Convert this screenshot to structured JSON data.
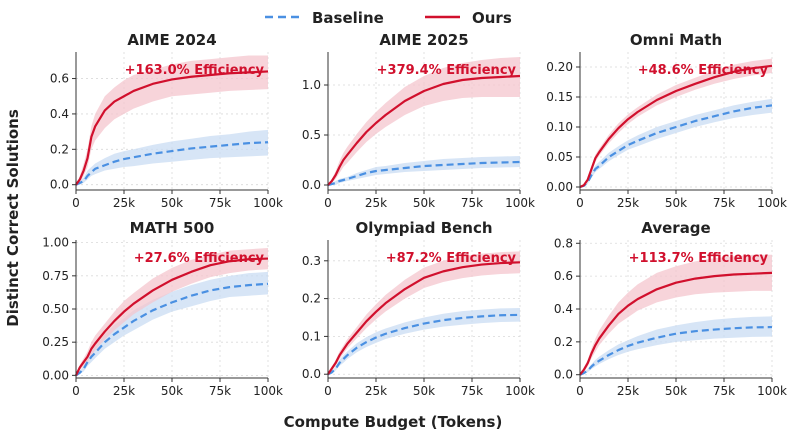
{
  "legend": {
    "baseline_label": "Baseline",
    "ours_label": "Ours"
  },
  "colors": {
    "baseline": "#4a90e2",
    "ours": "#d1102d",
    "baseline_band": "#c9dcf3",
    "ours_band": "#f4c5cd",
    "grid": "#d9d9d9"
  },
  "xlabel": "Compute Budget (Tokens)",
  "ylabel": "Distinct Correct Solutions",
  "chart_data": [
    {
      "type": "line",
      "title": "AIME 2024",
      "efficiency_label": "+163.0% Efficiency",
      "xlim": [
        0,
        100000
      ],
      "ylim": [
        -0.03,
        0.75
      ],
      "x_ticks": [
        "0",
        "25k",
        "50k",
        "75k",
        "100k"
      ],
      "y_ticks": [
        "0.0",
        "0.2",
        "0.4",
        "0.6"
      ],
      "y_tick_values": [
        0,
        0.2,
        0.4,
        0.6
      ],
      "x": [
        0,
        2000,
        4000,
        6000,
        8000,
        10000,
        15000,
        20000,
        25000,
        30000,
        40000,
        50000,
        60000,
        70000,
        80000,
        90000,
        100000
      ],
      "series": [
        {
          "name": "Baseline",
          "values": [
            0.0,
            0.01,
            0.02,
            0.05,
            0.07,
            0.09,
            0.11,
            0.13,
            0.145,
            0.155,
            0.175,
            0.19,
            0.205,
            0.215,
            0.225,
            0.235,
            0.24
          ],
          "lower": [
            0.0,
            0.0,
            0.01,
            0.03,
            0.05,
            0.06,
            0.08,
            0.09,
            0.1,
            0.105,
            0.12,
            0.13,
            0.14,
            0.15,
            0.155,
            0.16,
            0.165
          ],
          "upper": [
            0.0,
            0.02,
            0.04,
            0.08,
            0.1,
            0.12,
            0.15,
            0.175,
            0.19,
            0.2,
            0.225,
            0.245,
            0.26,
            0.275,
            0.285,
            0.3,
            0.31
          ]
        },
        {
          "name": "Ours",
          "values": [
            0.0,
            0.03,
            0.08,
            0.15,
            0.27,
            0.33,
            0.42,
            0.47,
            0.5,
            0.53,
            0.57,
            0.595,
            0.61,
            0.62,
            0.63,
            0.635,
            0.64
          ],
          "lower": [
            0.0,
            0.01,
            0.05,
            0.1,
            0.2,
            0.25,
            0.32,
            0.37,
            0.4,
            0.43,
            0.47,
            0.5,
            0.51,
            0.52,
            0.53,
            0.535,
            0.54
          ],
          "upper": [
            0.0,
            0.05,
            0.12,
            0.2,
            0.33,
            0.4,
            0.5,
            0.55,
            0.59,
            0.62,
            0.65,
            0.68,
            0.7,
            0.71,
            0.72,
            0.73,
            0.73
          ]
        }
      ]
    },
    {
      "type": "line",
      "title": "AIME 2025",
      "efficiency_label": "+379.4% Efficiency",
      "xlim": [
        0,
        100000
      ],
      "ylim": [
        -0.05,
        1.33
      ],
      "x_ticks": [
        "0",
        "25k",
        "50k",
        "75k",
        "100k"
      ],
      "y_ticks": [
        "0.0",
        "0.5",
        "1.0"
      ],
      "y_tick_values": [
        0,
        0.5,
        1.0
      ],
      "x": [
        0,
        2000,
        4000,
        6000,
        8000,
        10000,
        15000,
        20000,
        25000,
        30000,
        40000,
        50000,
        60000,
        70000,
        80000,
        90000,
        100000
      ],
      "series": [
        {
          "name": "Baseline",
          "values": [
            0.0,
            0.01,
            0.02,
            0.04,
            0.05,
            0.06,
            0.09,
            0.12,
            0.14,
            0.15,
            0.17,
            0.19,
            0.2,
            0.21,
            0.22,
            0.225,
            0.23
          ],
          "lower": [
            0.0,
            0.0,
            0.0,
            0.02,
            0.03,
            0.04,
            0.06,
            0.08,
            0.1,
            0.11,
            0.13,
            0.14,
            0.15,
            0.16,
            0.17,
            0.175,
            0.18
          ],
          "upper": [
            0.0,
            0.02,
            0.04,
            0.06,
            0.07,
            0.08,
            0.12,
            0.15,
            0.18,
            0.19,
            0.22,
            0.24,
            0.26,
            0.27,
            0.28,
            0.285,
            0.29
          ]
        },
        {
          "name": "Ours",
          "values": [
            0.0,
            0.04,
            0.1,
            0.18,
            0.25,
            0.3,
            0.42,
            0.53,
            0.62,
            0.7,
            0.84,
            0.94,
            1.01,
            1.05,
            1.07,
            1.08,
            1.09
          ],
          "lower": [
            0.0,
            0.02,
            0.06,
            0.12,
            0.18,
            0.22,
            0.33,
            0.43,
            0.51,
            0.58,
            0.7,
            0.79,
            0.84,
            0.87,
            0.88,
            0.88,
            0.88
          ],
          "upper": [
            0.0,
            0.06,
            0.14,
            0.24,
            0.32,
            0.38,
            0.51,
            0.63,
            0.73,
            0.82,
            0.98,
            1.09,
            1.17,
            1.22,
            1.25,
            1.27,
            1.28
          ]
        }
      ]
    },
    {
      "type": "line",
      "title": "Omni Math",
      "efficiency_label": "+48.6% Efficiency",
      "xlim": [
        0,
        100000
      ],
      "ylim": [
        -0.005,
        0.225
      ],
      "x_ticks": [
        "0",
        "25k",
        "50k",
        "75k",
        "100k"
      ],
      "y_ticks": [
        "0.00",
        "0.05",
        "0.10",
        "0.15",
        "0.20"
      ],
      "y_tick_values": [
        0,
        0.05,
        0.1,
        0.15,
        0.2
      ],
      "x": [
        0,
        2000,
        4000,
        6000,
        8000,
        10000,
        15000,
        20000,
        25000,
        30000,
        40000,
        50000,
        60000,
        70000,
        80000,
        90000,
        100000
      ],
      "series": [
        {
          "name": "Baseline",
          "values": [
            0.0,
            0.002,
            0.008,
            0.02,
            0.03,
            0.035,
            0.05,
            0.06,
            0.07,
            0.077,
            0.09,
            0.1,
            0.11,
            0.118,
            0.126,
            0.132,
            0.136
          ],
          "lower": [
            0.0,
            0.0,
            0.005,
            0.015,
            0.025,
            0.03,
            0.043,
            0.053,
            0.062,
            0.068,
            0.08,
            0.09,
            0.1,
            0.108,
            0.115,
            0.12,
            0.124
          ],
          "upper": [
            0.0,
            0.004,
            0.012,
            0.025,
            0.036,
            0.042,
            0.057,
            0.068,
            0.078,
            0.086,
            0.1,
            0.11,
            0.12,
            0.128,
            0.136,
            0.142,
            0.147
          ]
        },
        {
          "name": "Ours",
          "values": [
            0.0,
            0.003,
            0.012,
            0.03,
            0.048,
            0.058,
            0.08,
            0.098,
            0.113,
            0.125,
            0.145,
            0.16,
            0.172,
            0.183,
            0.192,
            0.198,
            0.202
          ],
          "lower": [
            0.0,
            0.001,
            0.009,
            0.025,
            0.042,
            0.052,
            0.073,
            0.09,
            0.105,
            0.117,
            0.136,
            0.15,
            0.162,
            0.172,
            0.18,
            0.186,
            0.19
          ],
          "upper": [
            0.0,
            0.005,
            0.015,
            0.035,
            0.054,
            0.064,
            0.087,
            0.106,
            0.121,
            0.133,
            0.154,
            0.17,
            0.182,
            0.194,
            0.204,
            0.21,
            0.214
          ]
        }
      ]
    },
    {
      "type": "line",
      "title": "MATH 500",
      "efficiency_label": "+27.6% Efficiency",
      "xlim": [
        0,
        100000
      ],
      "ylim": [
        -0.02,
        1.02
      ],
      "x_ticks": [
        "0",
        "25k",
        "50k",
        "75k",
        "100k"
      ],
      "y_ticks": [
        "0.00",
        "0.25",
        "0.50",
        "0.75",
        "1.00"
      ],
      "y_tick_values": [
        0,
        0.25,
        0.5,
        0.75,
        1.0
      ],
      "x": [
        0,
        2000,
        4000,
        6000,
        8000,
        10000,
        15000,
        20000,
        25000,
        30000,
        40000,
        50000,
        60000,
        70000,
        80000,
        90000,
        100000
      ],
      "series": [
        {
          "name": "Baseline",
          "values": [
            0.0,
            0.02,
            0.05,
            0.1,
            0.14,
            0.17,
            0.25,
            0.31,
            0.36,
            0.41,
            0.49,
            0.55,
            0.6,
            0.64,
            0.665,
            0.68,
            0.69
          ],
          "lower": [
            0.0,
            0.01,
            0.03,
            0.07,
            0.1,
            0.13,
            0.2,
            0.25,
            0.3,
            0.34,
            0.42,
            0.48,
            0.52,
            0.56,
            0.59,
            0.6,
            0.61
          ],
          "upper": [
            0.0,
            0.03,
            0.07,
            0.13,
            0.18,
            0.22,
            0.31,
            0.38,
            0.43,
            0.49,
            0.57,
            0.63,
            0.68,
            0.72,
            0.75,
            0.77,
            0.78
          ]
        },
        {
          "name": "Ours",
          "values": [
            0.0,
            0.06,
            0.1,
            0.14,
            0.2,
            0.24,
            0.33,
            0.41,
            0.48,
            0.54,
            0.64,
            0.72,
            0.78,
            0.83,
            0.86,
            0.875,
            0.88
          ],
          "lower": [
            0.0,
            0.04,
            0.07,
            0.1,
            0.15,
            0.19,
            0.27,
            0.34,
            0.4,
            0.46,
            0.55,
            0.63,
            0.69,
            0.74,
            0.77,
            0.79,
            0.8
          ],
          "upper": [
            0.0,
            0.08,
            0.13,
            0.18,
            0.25,
            0.3,
            0.39,
            0.48,
            0.56,
            0.62,
            0.73,
            0.81,
            0.87,
            0.91,
            0.94,
            0.95,
            0.96
          ]
        }
      ]
    },
    {
      "type": "line",
      "title": "Olympiad Bench",
      "efficiency_label": "+87.2% Efficiency",
      "xlim": [
        0,
        100000
      ],
      "ylim": [
        -0.01,
        0.355
      ],
      "x_ticks": [
        "0",
        "25k",
        "50k",
        "75k",
        "100k"
      ],
      "y_ticks": [
        "0.0",
        "0.1",
        "0.2",
        "0.3"
      ],
      "y_tick_values": [
        0,
        0.1,
        0.2,
        0.3
      ],
      "x": [
        0,
        2000,
        4000,
        6000,
        8000,
        10000,
        15000,
        20000,
        25000,
        30000,
        40000,
        50000,
        60000,
        70000,
        80000,
        90000,
        100000
      ],
      "series": [
        {
          "name": "Baseline",
          "values": [
            0.0,
            0.005,
            0.015,
            0.03,
            0.04,
            0.05,
            0.07,
            0.085,
            0.097,
            0.107,
            0.122,
            0.134,
            0.143,
            0.149,
            0.153,
            0.156,
            0.157
          ],
          "lower": [
            0.0,
            0.002,
            0.01,
            0.022,
            0.03,
            0.04,
            0.058,
            0.072,
            0.083,
            0.093,
            0.107,
            0.118,
            0.126,
            0.131,
            0.135,
            0.138,
            0.139
          ],
          "upper": [
            0.0,
            0.008,
            0.02,
            0.038,
            0.05,
            0.06,
            0.082,
            0.098,
            0.111,
            0.121,
            0.137,
            0.15,
            0.16,
            0.167,
            0.171,
            0.174,
            0.175
          ]
        },
        {
          "name": "Ours",
          "values": [
            0.0,
            0.015,
            0.03,
            0.05,
            0.065,
            0.08,
            0.11,
            0.14,
            0.165,
            0.188,
            0.225,
            0.255,
            0.272,
            0.283,
            0.29,
            0.294,
            0.296
          ],
          "lower": [
            0.0,
            0.01,
            0.022,
            0.04,
            0.054,
            0.068,
            0.095,
            0.122,
            0.145,
            0.166,
            0.2,
            0.228,
            0.244,
            0.254,
            0.261,
            0.265,
            0.267
          ],
          "upper": [
            0.0,
            0.02,
            0.038,
            0.06,
            0.076,
            0.092,
            0.125,
            0.158,
            0.185,
            0.21,
            0.25,
            0.282,
            0.3,
            0.312,
            0.319,
            0.323,
            0.325
          ]
        }
      ]
    },
    {
      "type": "line",
      "title": "Average",
      "efficiency_label": "+113.7% Efficiency",
      "xlim": [
        0,
        100000
      ],
      "ylim": [
        -0.02,
        0.82
      ],
      "x_ticks": [
        "0",
        "25k",
        "50k",
        "75k",
        "100k"
      ],
      "y_ticks": [
        "0.0",
        "0.2",
        "0.4",
        "0.6",
        "0.8"
      ],
      "y_tick_values": [
        0,
        0.2,
        0.4,
        0.6,
        0.8
      ],
      "x": [
        0,
        2000,
        4000,
        6000,
        8000,
        10000,
        15000,
        20000,
        25000,
        30000,
        40000,
        50000,
        60000,
        70000,
        80000,
        90000,
        100000
      ],
      "series": [
        {
          "name": "Baseline",
          "values": [
            0.0,
            0.01,
            0.025,
            0.05,
            0.07,
            0.085,
            0.12,
            0.15,
            0.175,
            0.195,
            0.225,
            0.25,
            0.265,
            0.275,
            0.283,
            0.288,
            0.29
          ],
          "lower": [
            0.0,
            0.005,
            0.015,
            0.035,
            0.05,
            0.065,
            0.095,
            0.12,
            0.14,
            0.155,
            0.18,
            0.2,
            0.21,
            0.22,
            0.225,
            0.23,
            0.232
          ],
          "upper": [
            0.0,
            0.015,
            0.035,
            0.065,
            0.09,
            0.11,
            0.15,
            0.185,
            0.21,
            0.235,
            0.275,
            0.3,
            0.32,
            0.335,
            0.345,
            0.352,
            0.355
          ]
        },
        {
          "name": "Ours",
          "values": [
            0.0,
            0.03,
            0.07,
            0.13,
            0.18,
            0.22,
            0.3,
            0.37,
            0.42,
            0.46,
            0.52,
            0.56,
            0.585,
            0.6,
            0.61,
            0.615,
            0.62
          ],
          "lower": [
            0.0,
            0.015,
            0.05,
            0.1,
            0.14,
            0.18,
            0.25,
            0.31,
            0.35,
            0.39,
            0.44,
            0.47,
            0.49,
            0.5,
            0.505,
            0.51,
            0.51
          ],
          "upper": [
            0.0,
            0.045,
            0.09,
            0.16,
            0.22,
            0.27,
            0.36,
            0.44,
            0.5,
            0.55,
            0.62,
            0.66,
            0.69,
            0.71,
            0.72,
            0.73,
            0.73
          ]
        }
      ]
    }
  ]
}
